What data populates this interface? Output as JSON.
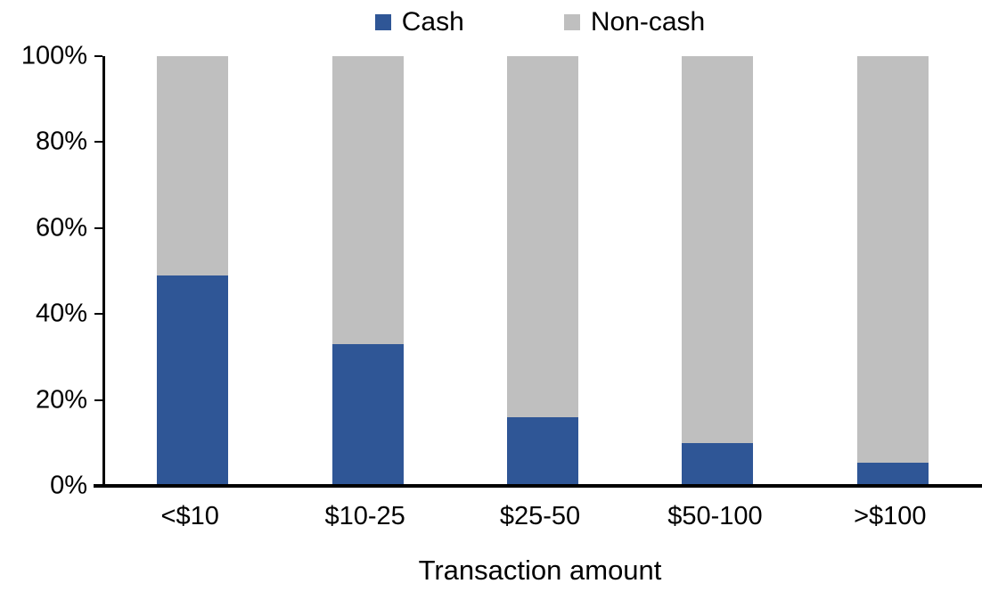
{
  "chart_data": {
    "type": "bar",
    "stacked": true,
    "orientation": "vertical",
    "categories": [
      "<$10",
      "$10-25",
      "$25-50",
      "$50-100",
      ">$100"
    ],
    "series": [
      {
        "name": "Cash",
        "color": "#2F5696",
        "values": [
          49,
          33,
          16,
          10,
          5.5
        ]
      },
      {
        "name": "Non-cash",
        "color": "#BFBFBF",
        "values": [
          51,
          67,
          84,
          90,
          94.5
        ]
      }
    ],
    "title": "",
    "xlabel": "Transaction amount",
    "ylabel": "",
    "ylim": [
      0,
      100
    ],
    "yticks": [
      0,
      20,
      40,
      60,
      80,
      100
    ],
    "ytick_suffix": "%",
    "grid": false,
    "legend_position": "top-center",
    "axis_color": "#000000",
    "background_color": "#FFFFFF"
  }
}
